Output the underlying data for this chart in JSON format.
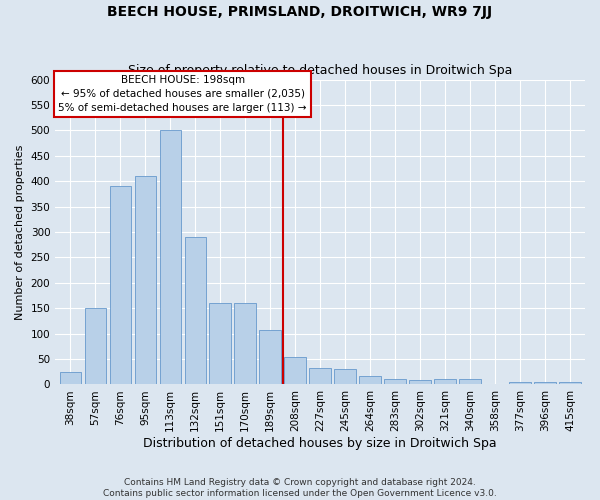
{
  "title": "BEECH HOUSE, PRIMSLAND, DROITWICH, WR9 7JJ",
  "subtitle": "Size of property relative to detached houses in Droitwich Spa",
  "xlabel": "Distribution of detached houses by size in Droitwich Spa",
  "ylabel": "Number of detached properties",
  "categories": [
    "38sqm",
    "57sqm",
    "76sqm",
    "95sqm",
    "113sqm",
    "132sqm",
    "151sqm",
    "170sqm",
    "189sqm",
    "208sqm",
    "227sqm",
    "245sqm",
    "264sqm",
    "283sqm",
    "302sqm",
    "321sqm",
    "340sqm",
    "358sqm",
    "377sqm",
    "396sqm",
    "415sqm"
  ],
  "bar_heights": [
    25,
    150,
    390,
    410,
    500,
    290,
    160,
    160,
    108,
    55,
    33,
    30,
    17,
    11,
    8,
    10,
    10,
    0,
    5,
    5,
    5
  ],
  "bar_color": "#b8d0e8",
  "bar_edge_color": "#6699cc",
  "vline_x_index": 8,
  "vline_color": "#cc0000",
  "annotation_line1": "BEECH HOUSE: 198sqm",
  "annotation_line2": "← 95% of detached houses are smaller (2,035)",
  "annotation_line3": "5% of semi-detached houses are larger (113) →",
  "annotation_box_color": "#ffffff",
  "annotation_box_edge": "#cc0000",
  "ylim": [
    0,
    600
  ],
  "yticks": [
    0,
    50,
    100,
    150,
    200,
    250,
    300,
    350,
    400,
    450,
    500,
    550,
    600
  ],
  "footer_line1": "Contains HM Land Registry data © Crown copyright and database right 2024.",
  "footer_line2": "Contains public sector information licensed under the Open Government Licence v3.0.",
  "background_color": "#dce6f0",
  "plot_bg_color": "#dce6f0",
  "title_fontsize": 10,
  "subtitle_fontsize": 9,
  "xlabel_fontsize": 9,
  "ylabel_fontsize": 8,
  "tick_fontsize": 7.5,
  "footer_fontsize": 6.5,
  "annotation_fontsize": 7.5
}
